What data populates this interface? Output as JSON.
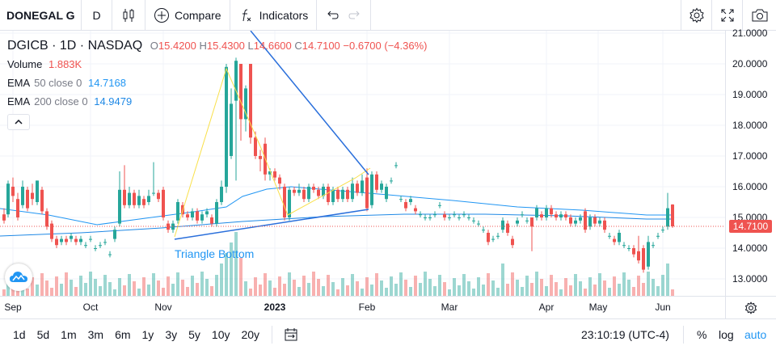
{
  "toolbar": {
    "symbol": "DONEGAL G",
    "interval": "D",
    "compare_label": "Compare",
    "indicators_label": "Indicators"
  },
  "legend": {
    "title": "DGICB · 1D · NASDAQ",
    "ohlc": [
      {
        "label": "O",
        "value": "15.4200"
      },
      {
        "label": "H",
        "value": "15.4300"
      },
      {
        "label": "L",
        "value": "14.6600"
      },
      {
        "label": "C",
        "value": "14.7100"
      }
    ],
    "change": "−0.6700 (−4.36%)",
    "volume_label": "Volume",
    "volume_value": "1.883K",
    "ema50_label": "EMA",
    "ema50_params": "50 close 0",
    "ema50_value": "14.7168",
    "ema200_label": "EMA",
    "ema200_params": "200 close 0",
    "ema200_value": "14.9479"
  },
  "annotation": "Triangle Bottom",
  "price_axis": {
    "ticks": [
      "21.0000",
      "20.0000",
      "19.0000",
      "18.0000",
      "17.0000",
      "16.0000",
      "15.0000",
      "14.0000",
      "13.0000"
    ],
    "current_price": "14.7100"
  },
  "time_axis": {
    "labels": [
      "Sep",
      "Oct",
      "Nov",
      "2023",
      "Feb",
      "Mar",
      "Apr",
      "May",
      "Jun"
    ]
  },
  "bottom_bar": {
    "ranges": [
      "1d",
      "5d",
      "1m",
      "3m",
      "6m",
      "1y",
      "3y",
      "5y",
      "10y",
      "20y"
    ],
    "clock": "23:10:19 (UTC-4)",
    "percent": "%",
    "log": "log",
    "auto": "auto"
  },
  "colors": {
    "up": "#26a69a",
    "down": "#ef5350",
    "ema50": "#2196f3",
    "ema200": "#1e88e5",
    "pattern": "#f9e04b",
    "trendline": "#2a6fdb"
  }
}
